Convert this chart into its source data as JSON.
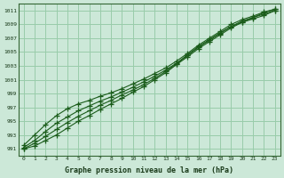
{
  "xlabel": "Graphe pression niveau de la mer (hPa)",
  "bg_color": "#cce8d8",
  "grid_color": "#99ccaa",
  "line_color": "#1a5c1a",
  "xlim_min": -0.5,
  "xlim_max": 23.5,
  "ylim_min": 990.0,
  "ylim_max": 1012.0,
  "yticks": [
    991,
    993,
    995,
    997,
    999,
    1001,
    1003,
    1005,
    1007,
    1009,
    1011
  ],
  "xticks": [
    0,
    1,
    2,
    3,
    4,
    5,
    6,
    7,
    8,
    9,
    10,
    11,
    12,
    13,
    14,
    15,
    16,
    17,
    18,
    19,
    20,
    21,
    22,
    23
  ],
  "series": [
    [
      991.0,
      991.4,
      992.2,
      993.0,
      994.0,
      995.0,
      995.8,
      996.7,
      997.5,
      998.3,
      999.2,
      1000.0,
      1001.0,
      1002.0,
      1003.2,
      1004.3,
      1005.5,
      1006.5,
      1007.5,
      1008.5,
      1009.3,
      1010.0,
      1010.7,
      1011.2
    ],
    [
      991.0,
      991.8,
      992.8,
      993.8,
      994.8,
      995.7,
      996.5,
      997.3,
      998.0,
      998.8,
      999.5,
      1000.3,
      1001.2,
      1002.2,
      1003.3,
      1004.5,
      1005.7,
      1006.7,
      1007.7,
      1008.7,
      1009.5,
      1010.0,
      1010.5,
      1011.0
    ],
    [
      991.2,
      992.2,
      993.5,
      994.7,
      995.6,
      996.5,
      997.2,
      997.9,
      998.5,
      999.2,
      999.9,
      1000.7,
      1001.5,
      1002.4,
      1003.4,
      1004.6,
      1005.8,
      1006.8,
      1007.8,
      1008.7,
      1009.3,
      1009.8,
      1010.3,
      1011.0
    ],
    [
      991.5,
      993.0,
      994.5,
      995.8,
      996.8,
      997.5,
      998.0,
      998.6,
      999.1,
      999.7,
      1000.4,
      1001.1,
      1001.9,
      1002.7,
      1003.7,
      1004.8,
      1006.0,
      1007.0,
      1008.0,
      1009.0,
      1009.7,
      1010.2,
      1010.8,
      1011.2
    ]
  ]
}
